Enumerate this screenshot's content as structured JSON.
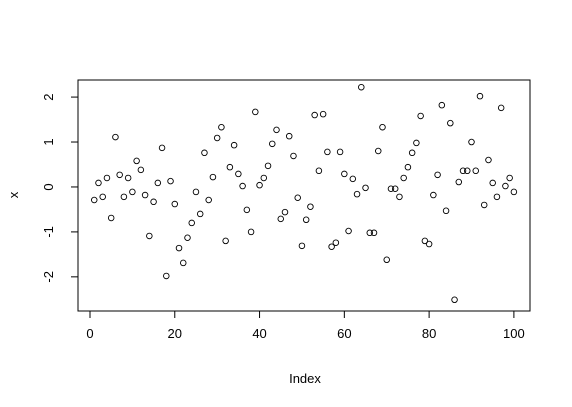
{
  "chart_data": {
    "type": "scatter",
    "x_label": "Index",
    "y_label": "x",
    "x": [
      1,
      2,
      3,
      4,
      5,
      6,
      7,
      8,
      9,
      10,
      11,
      12,
      13,
      14,
      15,
      16,
      17,
      18,
      19,
      20,
      21,
      22,
      23,
      24,
      25,
      26,
      27,
      28,
      29,
      30,
      31,
      32,
      33,
      34,
      35,
      36,
      37,
      38,
      39,
      40,
      41,
      42,
      43,
      44,
      45,
      46,
      47,
      48,
      49,
      50,
      51,
      52,
      53,
      54,
      55,
      56,
      57,
      58,
      59,
      60,
      61,
      62,
      63,
      64,
      65,
      66,
      67,
      68,
      69,
      70,
      71,
      72,
      73,
      74,
      75,
      76,
      77,
      78,
      79,
      80,
      81,
      82,
      83,
      84,
      85,
      86,
      87,
      88,
      89,
      90,
      91,
      92,
      93,
      94,
      95,
      96,
      97,
      98,
      99,
      100
    ],
    "values": [
      -0.29,
      0.09,
      -0.22,
      0.2,
      -0.69,
      1.11,
      0.27,
      -0.22,
      0.2,
      -0.11,
      0.58,
      0.38,
      -0.18,
      -1.09,
      -0.33,
      0.09,
      0.87,
      -1.98,
      0.13,
      -0.38,
      -1.36,
      -1.69,
      -1.13,
      -0.8,
      -0.11,
      -0.6,
      0.76,
      -0.29,
      0.22,
      1.09,
      1.33,
      -1.2,
      0.44,
      0.93,
      0.29,
      0.02,
      -0.51,
      -1,
      1.67,
      0.04,
      0.2,
      0.47,
      0.96,
      1.27,
      -0.71,
      -0.56,
      1.13,
      0.69,
      -0.24,
      -1.31,
      -0.73,
      -0.44,
      1.6,
      0.36,
      1.62,
      0.78,
      -1.33,
      -1.24,
      0.78,
      0.29,
      -0.98,
      0.18,
      -0.16,
      2.22,
      -0.02,
      -1.02,
      -1.02,
      0.8,
      1.33,
      -1.62,
      -0.04,
      -0.04,
      -0.22,
      0.2,
      0.44,
      0.76,
      0.98,
      1.58,
      -1.2,
      -1.27,
      -0.18,
      0.27,
      1.82,
      -0.53,
      1.42,
      -2.51,
      0.11,
      0.36,
      0.36,
      1,
      0.36,
      2.02,
      -0.4,
      0.6,
      0.09,
      -0.22,
      1.76,
      0.02,
      0.2,
      -0.11
    ],
    "color": "#000000",
    "xlim": [
      -2.83,
      103.8
    ],
    "xticks": [
      0,
      20,
      40,
      60,
      80,
      100
    ],
    "ylim": [
      -2.76,
      2.38
    ],
    "yticks": [
      -2,
      -1,
      0,
      1,
      2
    ]
  }
}
